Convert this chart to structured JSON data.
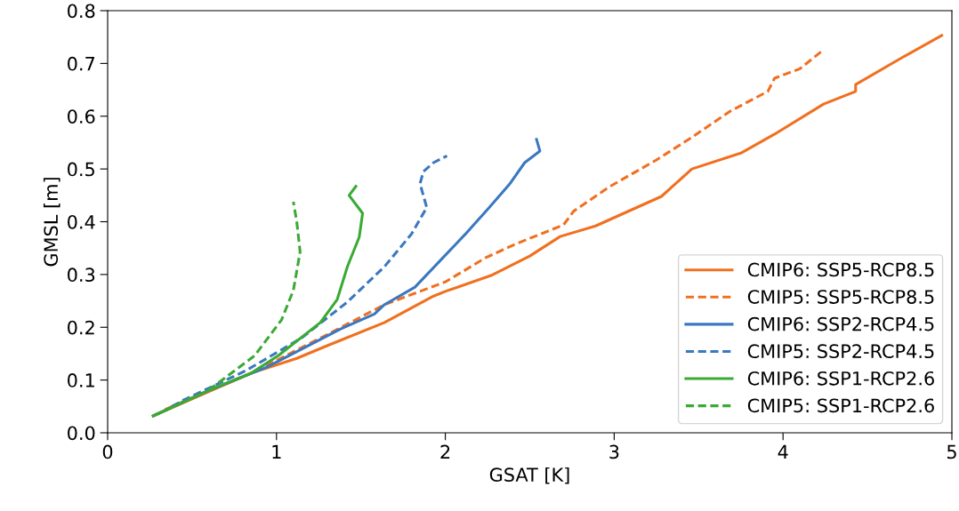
{
  "chart_data": {
    "type": "line",
    "xlabel": "GSAT [K]",
    "ylabel": "GMSL [m]",
    "xlim": [
      0,
      5
    ],
    "ylim": [
      0,
      0.8
    ],
    "xticks": [
      0,
      1,
      2,
      3,
      4,
      5
    ],
    "yticks": [
      {
        "value": 0,
        "label": "0.0"
      },
      0.1,
      0.2,
      0.3,
      0.4,
      0.5,
      0.6,
      0.7,
      0.8
    ],
    "grid": false,
    "legend": "lower right",
    "series": [
      {
        "name": "CMIP6: SSP5-RCP8.5",
        "color": "#f07020",
        "line_style": "solid",
        "x": [
          0.27,
          0.85,
          1.12,
          1.3,
          1.64,
          1.93,
          2.0,
          2.27,
          2.5,
          2.68,
          2.89,
          3.28,
          3.46,
          3.75,
          3.95,
          4.24,
          4.43,
          4.43,
          4.71,
          4.94
        ],
        "values": [
          0.032,
          0.113,
          0.141,
          0.165,
          0.209,
          0.259,
          0.268,
          0.298,
          0.335,
          0.372,
          0.392,
          0.448,
          0.5,
          0.53,
          0.566,
          0.623,
          0.647,
          0.66,
          0.712,
          0.753
        ]
      },
      {
        "name": "CMIP5: SSP5-RCP8.5",
        "color": "#f07020",
        "line_style": "dashed",
        "x": [
          0.34,
          0.59,
          0.85,
          1.3,
          1.64,
          2.0,
          2.24,
          2.41,
          2.7,
          2.76,
          2.97,
          3.25,
          3.46,
          3.69,
          3.91,
          3.95,
          4.1,
          4.24
        ],
        "values": [
          0.044,
          0.079,
          0.113,
          0.186,
          0.243,
          0.286,
          0.332,
          0.357,
          0.394,
          0.42,
          0.466,
          0.517,
          0.56,
          0.61,
          0.647,
          0.672,
          0.69,
          0.726
        ]
      },
      {
        "name": "CMIP6: SSP2-RCP4.5",
        "color": "#3a78c0",
        "line_style": "solid",
        "x": [
          0.27,
          0.59,
          0.94,
          1.38,
          1.58,
          1.64,
          1.82,
          2.12,
          2.26,
          2.38,
          2.47,
          2.56,
          2.54
        ],
        "values": [
          0.032,
          0.079,
          0.124,
          0.197,
          0.225,
          0.243,
          0.276,
          0.377,
          0.427,
          0.471,
          0.512,
          0.534,
          0.556
        ]
      },
      {
        "name": "CMIP5: SSP2-RCP4.5",
        "color": "#3a78c0",
        "line_style": "dashed",
        "x": [
          0.38,
          0.45,
          0.82,
          1.15,
          1.42,
          1.64,
          1.8,
          1.89,
          1.85,
          1.87,
          1.93,
          2.01
        ],
        "values": [
          0.05,
          0.062,
          0.118,
          0.18,
          0.248,
          0.315,
          0.377,
          0.427,
          0.472,
          0.495,
          0.512,
          0.525
        ]
      },
      {
        "name": "CMIP6: SSP1-RCP2.6",
        "color": "#3aaa35",
        "line_style": "solid",
        "x": [
          0.27,
          0.59,
          0.85,
          1.01,
          1.26,
          1.36,
          1.42,
          1.49,
          1.51,
          1.43,
          1.47
        ],
        "values": [
          0.032,
          0.079,
          0.113,
          0.146,
          0.209,
          0.253,
          0.315,
          0.371,
          0.416,
          0.45,
          0.467
        ]
      },
      {
        "name": "CMIP5: SSP1-RCP2.6",
        "color": "#3aaa35",
        "line_style": "dashed",
        "x": [
          0.27,
          0.59,
          0.87,
          1.03,
          1.1,
          1.14,
          1.12,
          1.1
        ],
        "values": [
          0.032,
          0.079,
          0.146,
          0.214,
          0.27,
          0.343,
          0.4,
          0.438
        ]
      }
    ]
  }
}
